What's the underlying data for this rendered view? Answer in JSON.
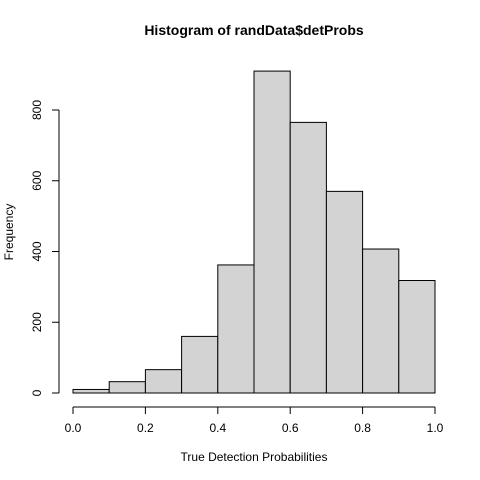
{
  "chart_data": {
    "type": "bar",
    "title": "Histogram of randData$detProbs",
    "xlabel": "True Detection Probabilities",
    "ylabel": "Frequency",
    "bin_edges": [
      0.0,
      0.1,
      0.2,
      0.3,
      0.4,
      0.5,
      0.6,
      0.7,
      0.8,
      0.9,
      1.0
    ],
    "values": [
      10,
      32,
      66,
      160,
      362,
      910,
      765,
      570,
      407,
      318
    ],
    "xlim": [
      0.0,
      1.0
    ],
    "ylim": [
      0,
      800
    ],
    "xticks": [
      0.0,
      0.2,
      0.4,
      0.6,
      0.8,
      1.0
    ],
    "xtick_labels": [
      "0.0",
      "0.2",
      "0.4",
      "0.6",
      "0.8",
      "1.0"
    ],
    "yticks": [
      0,
      200,
      400,
      600,
      800
    ],
    "ytick_labels": [
      "0",
      "200",
      "400",
      "600",
      "800"
    ],
    "grid": false,
    "bar_color": "#d3d3d3",
    "edge_color": "#000000"
  }
}
